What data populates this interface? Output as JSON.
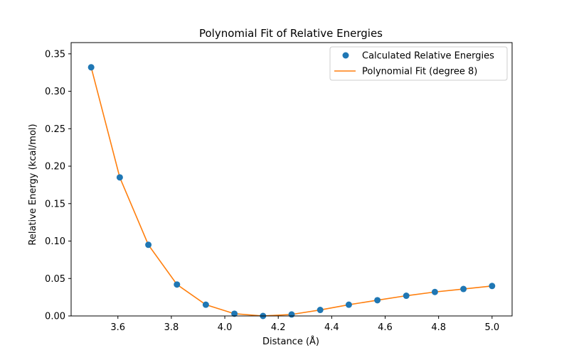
{
  "chart_data": {
    "type": "scatter",
    "title": "Polynomial Fit of Relative Energies",
    "xlabel": "Distance (Å)",
    "ylabel": "Relative Energy (kcal/mol)",
    "xlim": [
      3.425,
      5.075
    ],
    "ylim": [
      0.0,
      0.365
    ],
    "xticks": [
      3.6,
      3.8,
      4.0,
      4.2,
      4.4,
      4.6,
      4.8,
      5.0
    ],
    "xtick_labels": [
      "3.6",
      "3.8",
      "4.0",
      "4.2",
      "4.4",
      "4.6",
      "4.8",
      "5.0"
    ],
    "yticks": [
      0.0,
      0.05,
      0.1,
      0.15,
      0.2,
      0.25,
      0.3,
      0.35
    ],
    "ytick_labels": [
      "0.00",
      "0.05",
      "0.10",
      "0.15",
      "0.20",
      "0.25",
      "0.30",
      "0.35"
    ],
    "grid": false,
    "legend_position": "top-right",
    "series": [
      {
        "name": "Calculated Relative Energies",
        "kind": "scatter",
        "color": "#1f77b4",
        "x": [
          3.5,
          3.607,
          3.714,
          3.821,
          3.929,
          4.036,
          4.143,
          4.25,
          4.357,
          4.464,
          4.571,
          4.679,
          4.786,
          4.893,
          5.0
        ],
        "y": [
          0.332,
          0.185,
          0.095,
          0.042,
          0.015,
          0.003,
          0.0,
          0.002,
          0.008,
          0.015,
          0.021,
          0.027,
          0.032,
          0.036,
          0.04
        ]
      },
      {
        "name": "Polynomial Fit (degree 8)",
        "kind": "line",
        "color": "#ff7f0e",
        "x": [
          3.5,
          3.607,
          3.714,
          3.821,
          3.929,
          4.036,
          4.143,
          4.25,
          4.357,
          4.464,
          4.571,
          4.679,
          4.786,
          4.893,
          5.0
        ],
        "y": [
          0.332,
          0.185,
          0.095,
          0.042,
          0.015,
          0.003,
          0.0,
          0.002,
          0.008,
          0.015,
          0.021,
          0.027,
          0.032,
          0.036,
          0.04
        ]
      }
    ]
  }
}
